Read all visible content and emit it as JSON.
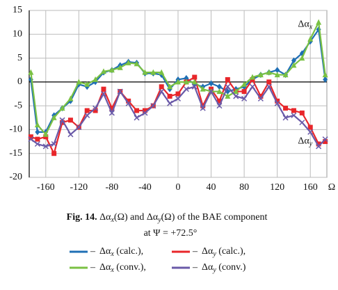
{
  "chart_data": {
    "type": "line",
    "x_label": "Ω",
    "xlim": [
      -180,
      180
    ],
    "ylim": [
      -20,
      15
    ],
    "xticks": [
      -160,
      -120,
      -80,
      -40,
      0,
      40,
      80,
      120,
      160
    ],
    "yticks": [
      15,
      10,
      5,
      0,
      -5,
      -10,
      -15,
      -20
    ],
    "grid": true,
    "x": [
      -178,
      -170,
      -160,
      -150,
      -140,
      -130,
      -120,
      -110,
      -100,
      -90,
      -80,
      -70,
      -60,
      -50,
      -40,
      -30,
      -20,
      -10,
      0,
      10,
      20,
      30,
      40,
      50,
      60,
      70,
      80,
      90,
      100,
      110,
      120,
      130,
      140,
      150,
      160,
      170,
      178
    ],
    "series": [
      {
        "name": "Δαx (calc.),",
        "color": "#1f6fb5",
        "marker": "diamond",
        "values": [
          0.5,
          -10.5,
          -10.5,
          -7,
          -5.5,
          -4,
          -0.5,
          -1,
          0,
          2,
          2.5,
          3.5,
          4.2,
          4,
          1.8,
          1.8,
          1.5,
          -1.5,
          0.5,
          0.8,
          -0.5,
          -1,
          -0.3,
          -1,
          -2,
          -1.5,
          -1,
          0.5,
          1.5,
          2,
          2.5,
          1.5,
          4.5,
          6,
          8.5,
          11,
          0.5
        ]
      },
      {
        "name": "Δαy (calc.),",
        "color": "#e8262a",
        "marker": "square",
        "values": [
          -11.5,
          -12,
          -11.5,
          -15,
          -8.5,
          -8,
          -9.5,
          -6,
          -6,
          -1.5,
          -5.5,
          -2,
          -4,
          -6,
          -6,
          -5,
          -1,
          -3,
          -2.5,
          0,
          1,
          -5,
          -1.5,
          -4,
          0.5,
          -2,
          -2,
          0.5,
          -3,
          0,
          -4,
          -5.5,
          -6,
          -6.5,
          -9.5,
          -13,
          -12.5
        ]
      },
      {
        "name": "Δαx (conv.),",
        "color": "#7ac143",
        "marker": "triangle",
        "values": [
          2,
          -9,
          -11,
          -7.5,
          -5.5,
          -3.5,
          0,
          -0.5,
          0.5,
          2.2,
          2.5,
          3,
          4,
          3.8,
          2,
          2,
          2,
          -1,
          0,
          0,
          0,
          -1.5,
          -2,
          -2,
          -3,
          -2,
          -0.5,
          1,
          1.5,
          2,
          1.5,
          1.5,
          3.5,
          5,
          9,
          12.5,
          1.5
        ]
      },
      {
        "name": "Δαy (conv.)",
        "color": "#6a5aa8",
        "marker": "cross",
        "values": [
          -12,
          -13,
          -13.5,
          -13,
          -8,
          -11,
          -9.5,
          -7,
          -5.5,
          -2.5,
          -6.5,
          -2,
          -4.5,
          -7.5,
          -6.5,
          -5,
          -2,
          -4.5,
          -3.5,
          -1.5,
          -1,
          -5.5,
          -2,
          -5,
          -1,
          -3,
          -3.5,
          -1,
          -3.5,
          -1,
          -4.5,
          -7.5,
          -7,
          -8.5,
          -10.5,
          -13.5,
          -12
        ]
      }
    ],
    "annotations": [
      {
        "text": "Δαx",
        "x": 145,
        "y": 12
      },
      {
        "text": "Δαy",
        "x": 145,
        "y": -12.5
      }
    ],
    "legend_separator": "–",
    "caption": {
      "label": "Fig. 14.",
      "lines": [
        "Δαx(Ω) and Δαy(Ω) of the BAE component",
        "at Ψ = +72.5°"
      ]
    }
  }
}
